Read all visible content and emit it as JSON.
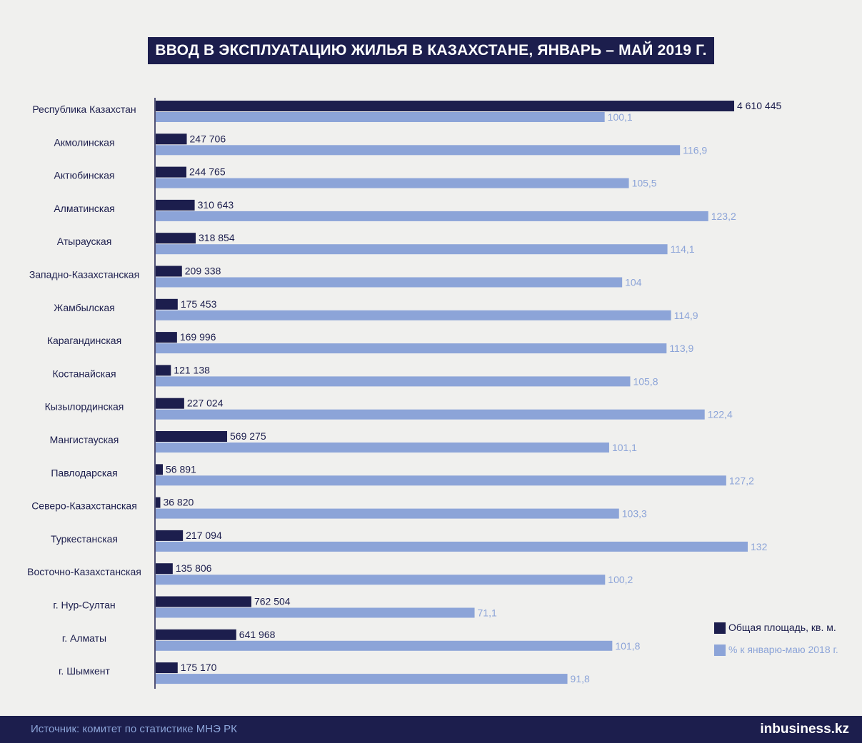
{
  "title": "ВВОД В ЭКСПЛУАТАЦИЮ ЖИЛЬЯ В КАЗАХСТАНЕ, ЯНВАРЬ – МАЙ 2019 Г.",
  "source": "Источник: комитет по статистике МНЭ РК",
  "logo": "inbusiness.kz",
  "legend": {
    "area": "Общая площадь, кв. м.",
    "percent": "% к январю-маю 2018 г."
  },
  "colors": {
    "dark": "#1c1e4d",
    "light": "#8ca4d8",
    "background": "#f0f0ee"
  },
  "chart_data": {
    "type": "bar",
    "orientation": "horizontal",
    "categories": [
      "Республика Казахстан",
      "Акмолинская",
      "Актюбинская",
      "Алматинская",
      "Атырауская",
      "Западно-Казахстанская",
      "Жамбылская",
      "Карагандинская",
      "Костанайская",
      "Кызылординская",
      "Мангистауская",
      "Павлодарская",
      "Северо-Казахстанская",
      "Туркестанская",
      "Восточно-Казахстанская",
      "г. Нур-Султан",
      "г. Алматы",
      "г. Шымкент"
    ],
    "series": [
      {
        "name": "Общая площадь, кв. м.",
        "values": [
          4610445,
          247706,
          244765,
          310643,
          318854,
          209338,
          175453,
          169996,
          121138,
          227024,
          569275,
          56891,
          36820,
          217094,
          135806,
          762504,
          641968,
          175170
        ],
        "labels": [
          "4 610 445",
          "247 706",
          "244 765",
          "310 643",
          "318 854",
          "209 338",
          "175 453",
          "169 996",
          "121 138",
          "227 024",
          "569 275",
          "56 891",
          "36 820",
          "217 094",
          "135 806",
          "762 504",
          "641 968",
          "175 170"
        ]
      },
      {
        "name": "% к январю-маю 2018 г.",
        "values": [
          100.1,
          116.9,
          105.5,
          123.2,
          114.1,
          104,
          114.9,
          113.9,
          105.8,
          122.4,
          101.1,
          127.2,
          103.3,
          132,
          100.2,
          71.1,
          101.8,
          91.8
        ],
        "labels": [
          "100,1",
          "116,9",
          "105,5",
          "123,2",
          "114,1",
          "104",
          "114,9",
          "113,9",
          "105,8",
          "122,4",
          "101,1",
          "127,2",
          "103,3",
          "132",
          "100,2",
          "71,1",
          "101,8",
          "91,8"
        ]
      }
    ],
    "xlim_area": [
      0,
      4610445
    ],
    "xlim_percent": [
      0,
      132
    ],
    "grid": false,
    "legend_position": "bottom-right"
  }
}
